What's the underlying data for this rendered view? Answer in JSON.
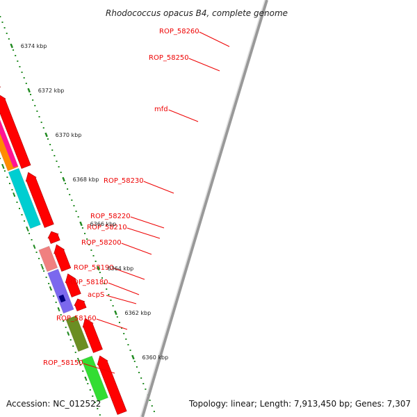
{
  "title": "Rhodococcus opacus B4, complete genome",
  "accession_label": "Accession: NC_012522",
  "summary": "Topology: linear; Length: 7,913,450 bp; Genes: 7,307",
  "colors": {
    "label": "#ee0000",
    "cds": "#ff0000",
    "backbone": "#999999",
    "gc_dots": "#228b22"
  },
  "scale_ticks": [
    {
      "kbp": 6360,
      "label": "6360 kbp"
    },
    {
      "kbp": 6362,
      "label": "6362 kbp"
    },
    {
      "kbp": 6364,
      "label": "6364 kbp"
    },
    {
      "kbp": 6366,
      "label": "6366 kbp"
    },
    {
      "kbp": 6368,
      "label": "6368 kbp"
    },
    {
      "kbp": 6370,
      "label": "6370 kbp"
    },
    {
      "kbp": 6372,
      "label": "6372 kbp"
    },
    {
      "kbp": 6374,
      "label": "6374 kbp"
    }
  ],
  "gene_labels": [
    {
      "name": "ROP_58260"
    },
    {
      "name": "ROP_58250"
    },
    {
      "name": "mfd"
    },
    {
      "name": "ROP_58230"
    },
    {
      "name": "ROP_58220"
    },
    {
      "name": "ROP_58210"
    },
    {
      "name": "ROP_58200"
    },
    {
      "name": "ROP_58190"
    },
    {
      "name": "ROP_58180"
    },
    {
      "name": "acpS"
    },
    {
      "name": "ROP_58160"
    },
    {
      "name": "ROP_58150"
    }
  ],
  "features": [
    {
      "name": "ROP_58150",
      "color": "#33dd33"
    },
    {
      "name": "ROP_58160",
      "color": "#6b8e23"
    },
    {
      "name": "acpS",
      "color": "#000080"
    },
    {
      "name": "ROP_58180",
      "color": "#7b68ee"
    },
    {
      "name": "ROP_58190",
      "color": "#f08080"
    },
    {
      "name": "ROP_58230",
      "color": "#00ced1"
    },
    {
      "name": "mfd",
      "color": "#ff8c00"
    },
    {
      "name": "ROP_58250",
      "color": "#c8c8c8"
    },
    {
      "name": "ROP_58260",
      "color": "#6b8e23"
    }
  ]
}
